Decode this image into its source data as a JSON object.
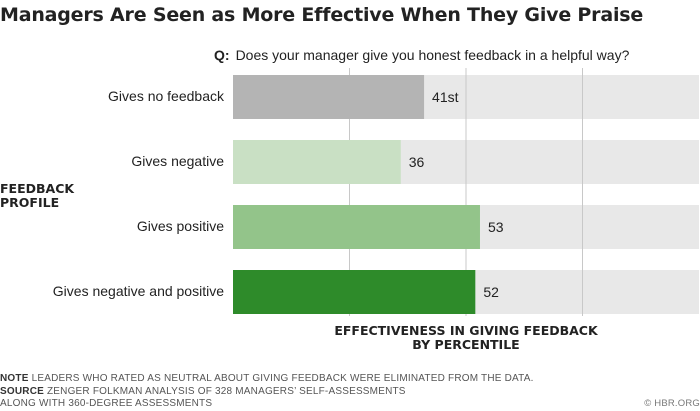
{
  "title": "Managers Are Seen as More Effective When They Give Praise",
  "question": {
    "prefix": "Q:",
    "text": "Does your manager give you honest feedback in a helpful way?"
  },
  "y_axis_label_line1": "FEEDBACK",
  "y_axis_label_line2": "PROFILE",
  "x_axis_label_line1": "EFFECTIVENESS IN GIVING FEEDBACK",
  "x_axis_label_line2": "BY PERCENTILE",
  "chart_data": {
    "type": "bar",
    "orientation": "horizontal",
    "categories": [
      "Gives no feedback",
      "Gives negative",
      "Gives positive",
      "Gives negative and positive"
    ],
    "values": [
      41,
      36,
      53,
      52
    ],
    "data_labels": [
      "41st",
      "36",
      "53",
      "52"
    ],
    "colors": [
      "#b4b4b4",
      "#c9e0c4",
      "#93c48a",
      "#2e8b2a"
    ],
    "background_color": "#e8e8e8",
    "xlim": [
      0,
      100
    ],
    "grid": true,
    "gridlines": [
      25,
      50,
      75
    ]
  },
  "notes": {
    "note_label": "NOTE",
    "note_text": "LEADERS WHO RATED AS NEUTRAL ABOUT GIVING FEEDBACK WERE ELIMINATED FROM THE DATA.",
    "source_label": "SOURCE",
    "source_text_line1": "ZENGER FOLKMAN ANALYSIS OF 328 MANAGERS’ SELF-ASSESSMENTS",
    "source_text_line2": "ALONG WITH 360-DEGREE ASSESSMENTS"
  },
  "credit": "© HBR.ORG"
}
